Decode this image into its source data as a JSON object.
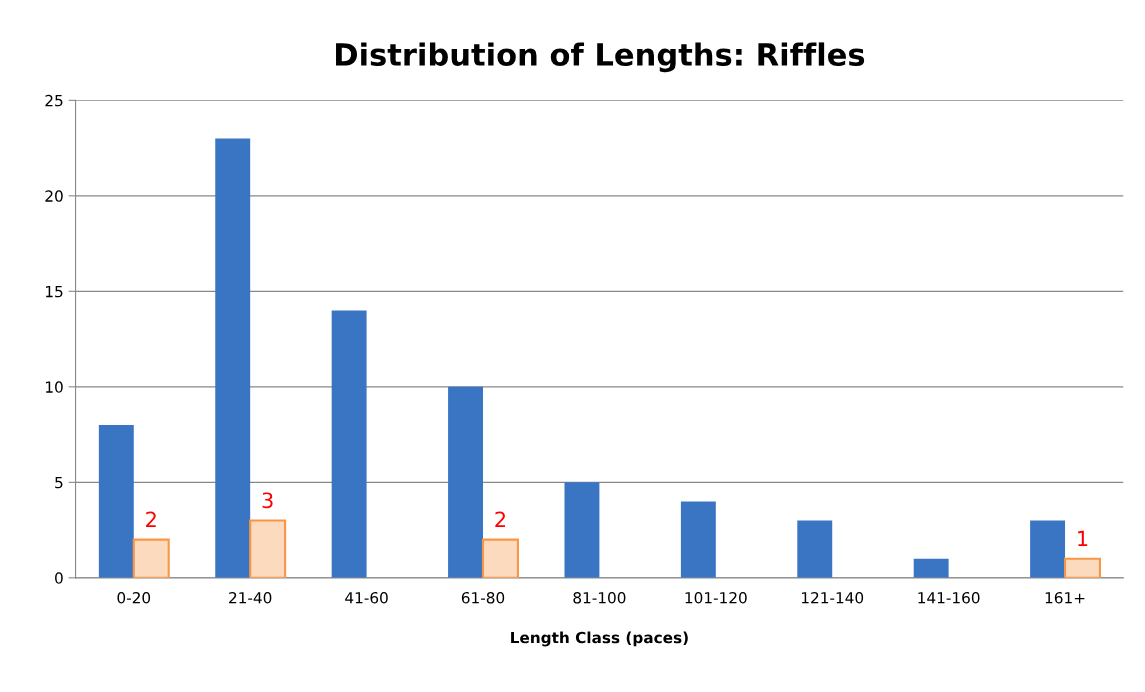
{
  "chart_data": {
    "type": "bar",
    "title": "Distribution of Lengths: Riffles",
    "xlabel": "Length Class (paces)",
    "categories": [
      "0-20",
      "21-40",
      "41-60",
      "61-80",
      "81-100",
      "101-120",
      "121-140",
      "141-160",
      "161+"
    ],
    "series": [
      {
        "color": "#3a75c4",
        "values": [
          8,
          23,
          14,
          10,
          5,
          4,
          3,
          1,
          3
        ]
      },
      {
        "color": "#f79646",
        "values": [
          2,
          3,
          null,
          2,
          null,
          null,
          null,
          null,
          1
        ],
        "value_labels": [
          "2",
          "3",
          null,
          "2",
          null,
          null,
          null,
          null,
          "1"
        ]
      }
    ],
    "ylim": [
      0,
      25
    ],
    "yticks": [
      0,
      5,
      10,
      15,
      20,
      25
    ],
    "grid": "y"
  }
}
